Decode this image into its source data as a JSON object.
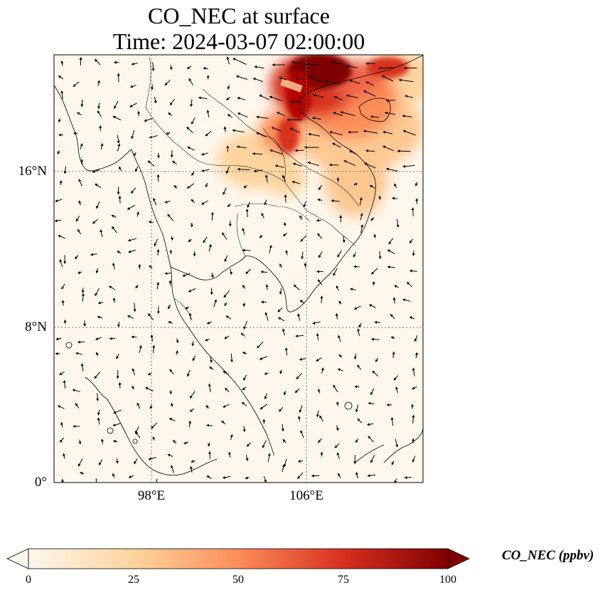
{
  "title": {
    "line1": "CO_NEC at surface",
    "line2": "Time: 2024-03-07 02:00:00"
  },
  "map": {
    "lat_ticks": [
      "16°N",
      "8°N",
      "0°"
    ],
    "lon_ticks": [
      "98°E",
      "106°E"
    ],
    "gridlines": "dotted",
    "features": [
      "coastlines",
      "country-borders",
      "wind-vectors"
    ],
    "plume_region": "northern Vietnam / Laos (top-right)"
  },
  "colorbar": {
    "title": "CO_NEC (ppbv)",
    "ticks": [
      "0",
      "25",
      "50",
      "75",
      "100"
    ],
    "colormap": "OrRd",
    "extend": "both",
    "colors": [
      "#fff7ec",
      "#fdd49e",
      "#fc8d59",
      "#d7301f",
      "#7f0000"
    ]
  },
  "chart_data": {
    "type": "heatmap",
    "title": "CO_NEC at surface",
    "subtitle": "Time: 2024-03-07 02:00:00",
    "variable_label": "CO_NEC (ppbv)",
    "value_range": [
      0,
      100
    ],
    "lat_ticks": [
      16,
      8,
      0
    ],
    "lon_ticks": [
      98,
      106
    ],
    "xlim": [
      93,
      112
    ],
    "ylim": [
      0,
      22
    ]
  }
}
